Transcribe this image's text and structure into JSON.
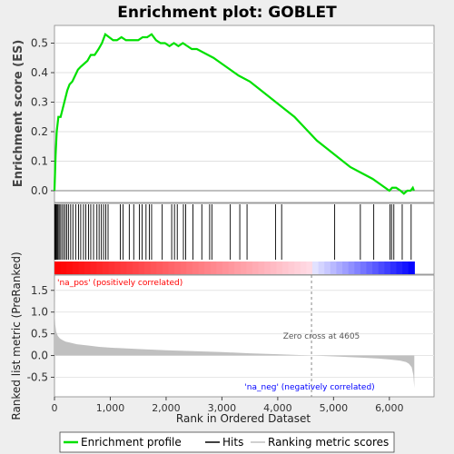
{
  "chart_data": [
    {
      "type": "line",
      "title": "Enrichment plot: GOBLET",
      "ylabel": "Enrichment score (ES)",
      "xlim": [
        0,
        6800
      ],
      "ylim": [
        -0.04,
        0.56
      ],
      "yticks": [
        0.0,
        0.1,
        0.2,
        0.3,
        0.4,
        0.5
      ],
      "ytick_labels": [
        "0.0",
        "0.1",
        "0.2",
        "0.3",
        "0.4",
        "0.5"
      ],
      "grid": true,
      "series": [
        {
          "name": "Enrichment profile",
          "color": "#00e000",
          "x": [
            0,
            20,
            40,
            70,
            110,
            150,
            190,
            230,
            270,
            320,
            370,
            420,
            470,
            530,
            590,
            650,
            720,
            790,
            850,
            910,
            980,
            1050,
            1120,
            1200,
            1280,
            1350,
            1420,
            1500,
            1580,
            1660,
            1740,
            1820,
            1900,
            1980,
            2060,
            2140,
            2220,
            2300,
            2380,
            2460,
            2550,
            2650,
            2750,
            2850,
            3000,
            3150,
            3300,
            3500,
            3700,
            3900,
            4100,
            4300,
            4500,
            4700,
            4900,
            5100,
            5300,
            5500,
            5700,
            5850,
            6000,
            6050,
            6120,
            6200,
            6260,
            6320,
            6380,
            6420,
            6440
          ],
          "values": [
            0.0,
            0.12,
            0.2,
            0.25,
            0.25,
            0.28,
            0.31,
            0.34,
            0.36,
            0.37,
            0.39,
            0.41,
            0.42,
            0.43,
            0.44,
            0.46,
            0.46,
            0.48,
            0.5,
            0.53,
            0.52,
            0.51,
            0.51,
            0.52,
            0.51,
            0.51,
            0.51,
            0.51,
            0.52,
            0.52,
            0.53,
            0.51,
            0.5,
            0.5,
            0.49,
            0.5,
            0.49,
            0.5,
            0.49,
            0.48,
            0.48,
            0.47,
            0.46,
            0.45,
            0.43,
            0.41,
            0.39,
            0.37,
            0.34,
            0.31,
            0.28,
            0.25,
            0.21,
            0.17,
            0.14,
            0.11,
            0.08,
            0.06,
            0.04,
            0.02,
            0.0,
            0.01,
            0.01,
            0.0,
            -0.01,
            0.0,
            0.0,
            0.01,
            0.0
          ]
        }
      ]
    },
    {
      "type": "scatter",
      "note_free_hits_panel": true,
      "xlim": [
        0,
        6800
      ],
      "series": [
        {
          "name": "Hits",
          "color": "#000000",
          "x": [
            5,
            12,
            20,
            30,
            45,
            60,
            80,
            100,
            130,
            160,
            190,
            220,
            250,
            290,
            330,
            380,
            430,
            470,
            520,
            560,
            610,
            650,
            700,
            760,
            800,
            840,
            880,
            920,
            960,
            1180,
            1230,
            1340,
            1420,
            1520,
            1570,
            1640,
            1700,
            1740,
            1930,
            2100,
            2150,
            2200,
            2310,
            2350,
            2480,
            2640,
            2780,
            2820,
            3150,
            3320,
            3450,
            3960,
            4070,
            5020,
            5480,
            5720,
            6010,
            6040,
            6080,
            6230,
            6390
          ]
        }
      ]
    },
    {
      "type": "area",
      "ylabel": "Ranked list metric (PreRanked)",
      "xlabel": "Rank in Ordered Dataset",
      "xlim": [
        0,
        6800
      ],
      "ylim": [
        -0.95,
        1.85
      ],
      "xticks": [
        0,
        1000,
        2000,
        3000,
        4000,
        5000,
        6000
      ],
      "xtick_labels": [
        "0",
        "1,000",
        "2,000",
        "3,000",
        "4,000",
        "5,000",
        "6,000"
      ],
      "yticks": [
        -0.5,
        0.0,
        0.5,
        1.0,
        1.5
      ],
      "ytick_labels": [
        "-0.5",
        "0.0",
        "0.5",
        "1.0",
        "1.5"
      ],
      "series": [
        {
          "name": "Ranking metric scores",
          "color": "#c0c0c0",
          "x": [
            0,
            5,
            15,
            30,
            60,
            100,
            150,
            200,
            300,
            400,
            600,
            800,
            1000,
            1500,
            2000,
            2500,
            3000,
            3500,
            4000,
            4605,
            5000,
            5500,
            5800,
            6000,
            6200,
            6300,
            6350,
            6400,
            6430,
            6447
          ],
          "values": [
            1.6,
            0.95,
            0.7,
            0.55,
            0.45,
            0.39,
            0.35,
            0.32,
            0.29,
            0.26,
            0.23,
            0.2,
            0.18,
            0.15,
            0.12,
            0.1,
            0.08,
            0.05,
            0.03,
            0.0,
            -0.02,
            -0.05,
            -0.07,
            -0.09,
            -0.12,
            -0.15,
            -0.19,
            -0.27,
            -0.45,
            -0.75
          ]
        }
      ],
      "annotations": [
        "'na_pos' (positively correlated)",
        "Zero cross at 4605",
        "'na_neg' (negatively correlated)"
      ],
      "zero_cross": 4605
    }
  ],
  "legend": {
    "items": [
      "Enrichment profile",
      "Hits",
      "Ranking metric scores"
    ],
    "colors": [
      "#00e000",
      "#000000",
      "#c0c0c0"
    ]
  },
  "annotation_colors": {
    "pos": "#ff0000",
    "neg": "#0000ff",
    "zero": "#555555"
  }
}
